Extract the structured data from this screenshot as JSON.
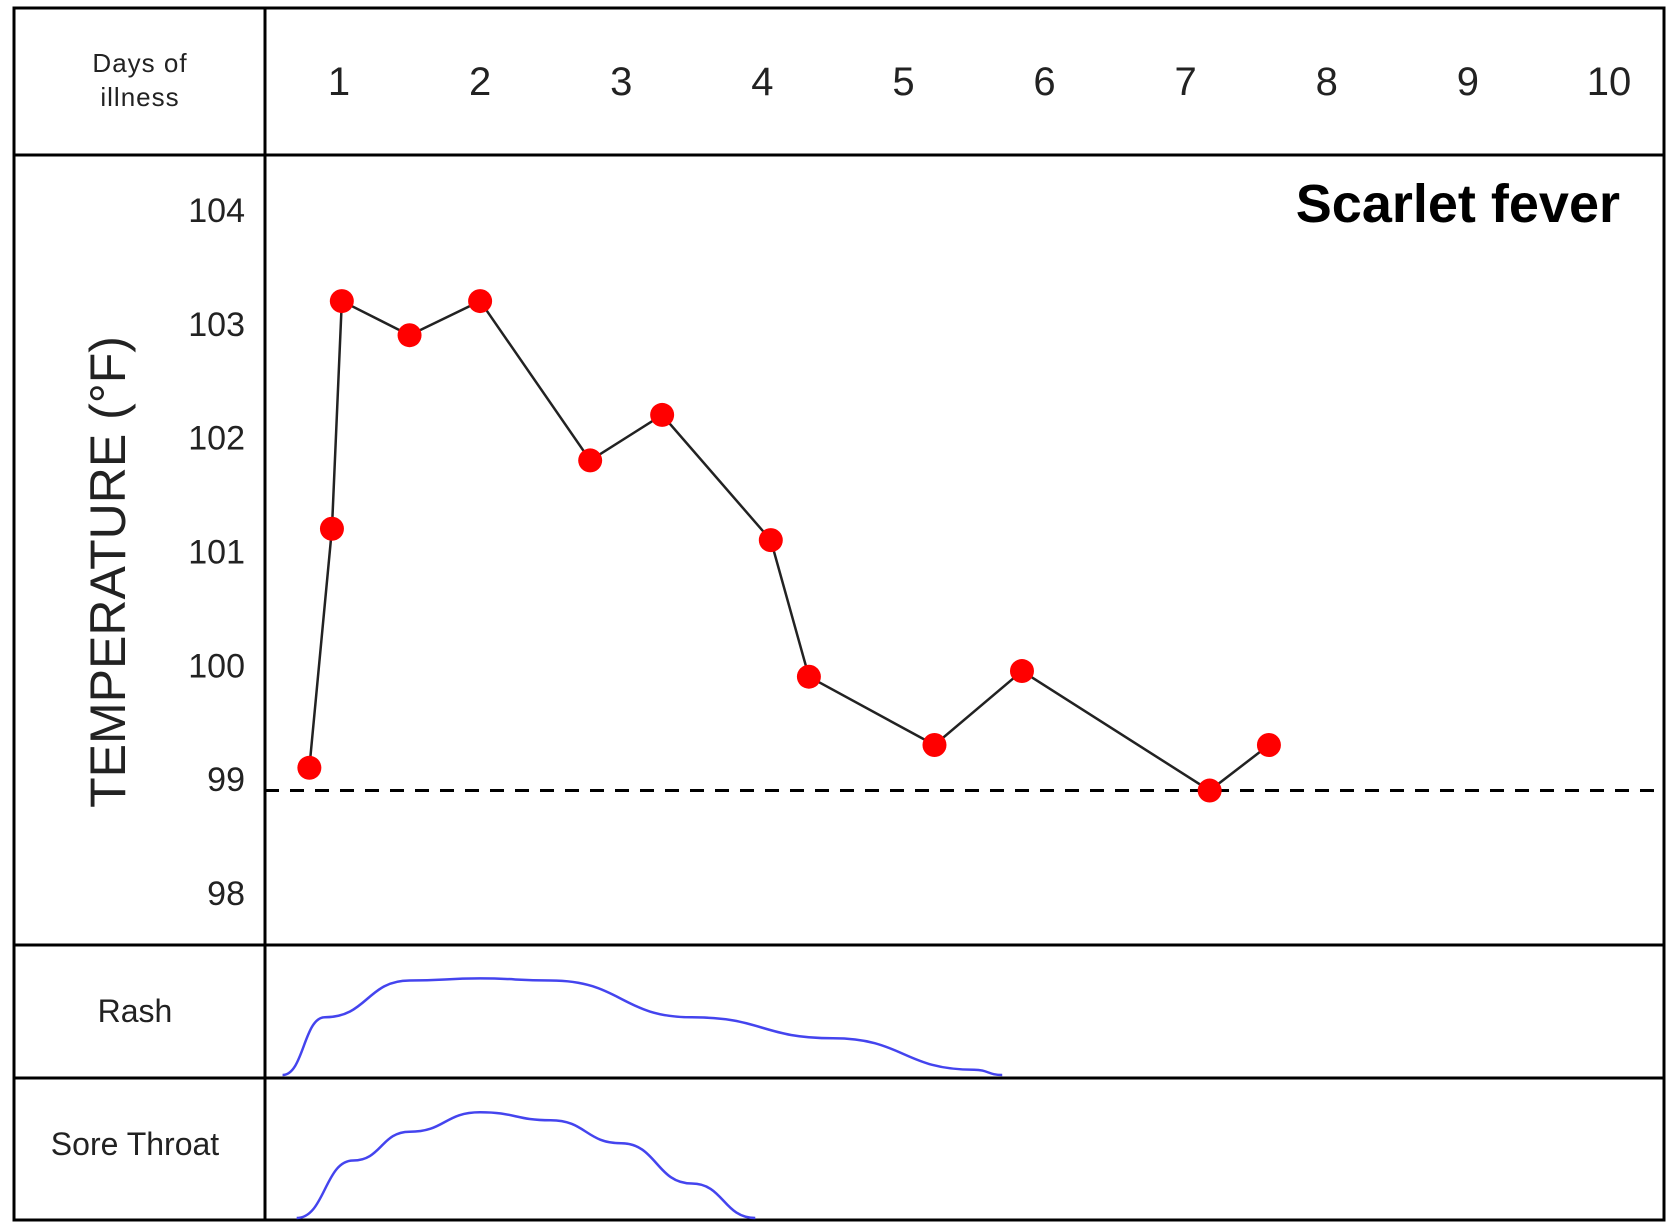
{
  "chart_data": {
    "type": "line",
    "title": "Scarlet fever",
    "header_label_line1": "Days of",
    "header_label_line2": "illness",
    "ylabel": "TEMPERATURE (°F)",
    "ylim": [
      97.5,
      104.5
    ],
    "xlim": [
      0.5,
      10
    ],
    "x_ticks": [
      "1",
      "2",
      "3",
      "4",
      "5",
      "6",
      "7",
      "8",
      "9",
      "10"
    ],
    "y_ticks": [
      "104",
      "103",
      "102",
      "101",
      "100",
      "99",
      "98"
    ],
    "normal_line": 98.9,
    "series": [
      {
        "x": [
          0.79,
          0.95,
          1.02,
          1.5,
          2.0,
          2.78,
          3.29,
          4.06,
          4.33,
          5.22,
          5.84,
          7.17,
          7.59
        ],
        "y": [
          99.1,
          101.2,
          103.2,
          102.9,
          103.2,
          101.8,
          102.2,
          101.1,
          99.9,
          99.3,
          99.95,
          98.9,
          99.3
        ]
      }
    ],
    "symptom_rows": [
      {
        "label": "Rash",
        "curve": [
          [
            0.6,
            0.0
          ],
          [
            0.9,
            0.55
          ],
          [
            1.5,
            0.9
          ],
          [
            2.0,
            0.92
          ],
          [
            2.5,
            0.9
          ],
          [
            3.5,
            0.55
          ],
          [
            4.5,
            0.35
          ],
          [
            5.5,
            0.05
          ],
          [
            5.7,
            0.0
          ]
        ]
      },
      {
        "label": "Sore Throat",
        "curve": [
          [
            0.7,
            0.0
          ],
          [
            1.1,
            0.5
          ],
          [
            1.5,
            0.75
          ],
          [
            2.0,
            0.92
          ],
          [
            2.5,
            0.85
          ],
          [
            3.0,
            0.65
          ],
          [
            3.5,
            0.3
          ],
          [
            3.95,
            0.0
          ]
        ]
      }
    ],
    "colors": {
      "markers": "#ff0000",
      "line": "#222222",
      "curves": "#4444ee",
      "grid": "#000000"
    },
    "grid": false
  }
}
